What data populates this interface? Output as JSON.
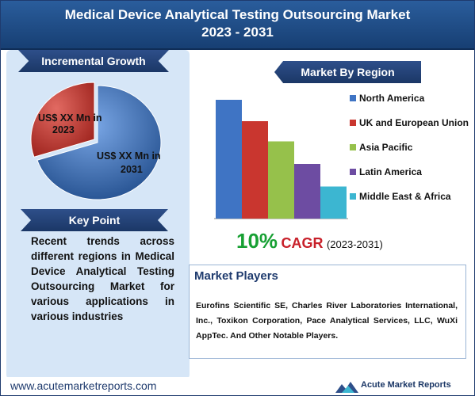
{
  "header": {
    "title_line1": "Medical Device Analytical Testing Outsourcing Market",
    "title_line2": "2023 - 2031"
  },
  "incremental_growth": {
    "label": "Incremental Growth",
    "slice_2023": "US$ XX Mn in 2023",
    "slice_2031": "US$ XX Mn in 2031"
  },
  "key_point": {
    "label": "Key Point",
    "text": "Recent trends across different regions in Medical Device Analytical Testing Outsourcing Market for various applications in various industries"
  },
  "market_by_region": {
    "label": "Market By Region"
  },
  "cagr": {
    "value": "10%",
    "label": "CAGR",
    "period": "(2023-2031)"
  },
  "market_players": {
    "title": "Market Players",
    "text": "Eurofins Scientific SE, Charles River Laboratories International, Inc., Toxikon Corporation, Pace Analytical Services, LLC, WuXi AppTec. And Other Notable Players."
  },
  "footer": {
    "url": "www.acutemarketreports.com",
    "logo_text": "Acute Market Reports"
  },
  "colors": {
    "north_america": "#3f74c4",
    "uk_eu": "#c9362f",
    "asia_pacific": "#96c14b",
    "latin_america": "#6d4ca2",
    "mea": "#3cb6d1"
  },
  "chart_data": [
    {
      "type": "pie",
      "labels": [
        "US$ XX Mn in 2023",
        "US$ XX Mn in 2031"
      ],
      "values": [
        30,
        70
      ],
      "colors": [
        "#c9362f",
        "#3f74c4"
      ]
    },
    {
      "type": "bar",
      "categories": [
        "North America",
        "UK and European Union",
        "Asia Pacific",
        "Latin America",
        "Middle East & Africa"
      ],
      "values": [
        100,
        82,
        65,
        46,
        27
      ],
      "colors": [
        "#3f74c4",
        "#c9362f",
        "#96c14b",
        "#6d4ca2",
        "#3cb6d1"
      ],
      "legend": "right",
      "ylim": [
        0,
        100
      ]
    }
  ]
}
